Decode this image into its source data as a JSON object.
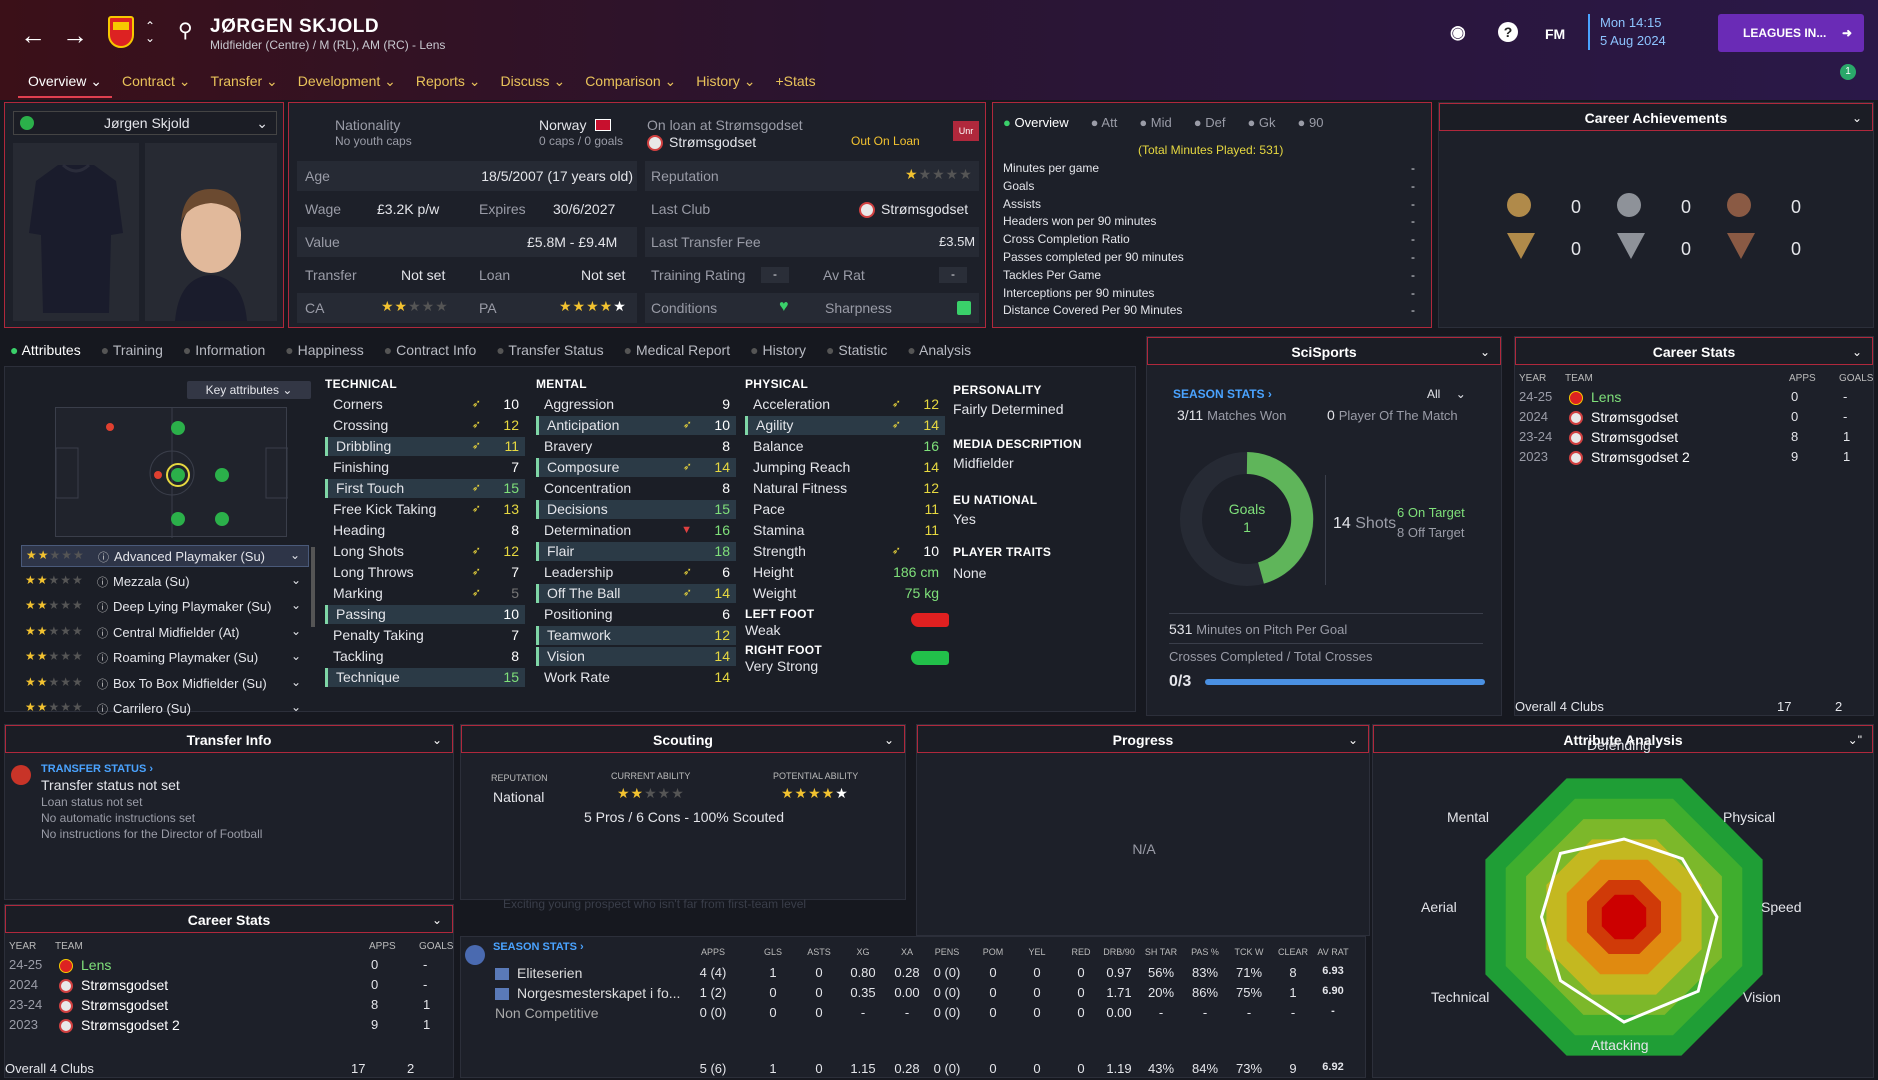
{
  "header": {
    "name": "JØRGEN SKJOLD",
    "subtitle": "Midfielder (Centre) / M (RL), AM (RC) - Lens",
    "date_time": "Mon 14:15",
    "date": "5 Aug 2024",
    "leagues_btn": "LEAGUES IN...",
    "fm": "FM",
    "notif": "1"
  },
  "tabs": [
    "Overview",
    "Contract",
    "Transfer",
    "Development",
    "Reports",
    "Discuss",
    "Comparison",
    "History",
    "+Stats"
  ],
  "profile": {
    "selector": "Jørgen Skjold"
  },
  "info": {
    "nationality_label": "Nationality",
    "nationality": "Norway",
    "youth_caps": "No youth caps",
    "caps": "0 caps / 0 goals",
    "loan_label": "On loan at Strømsgodset",
    "loan_club": "Strømsgodset",
    "loan_status": "Out On Loan",
    "unr": "Unr",
    "age_label": "Age",
    "age": "18/5/2007 (17 years old)",
    "rep_label": "Reputation",
    "wage_label": "Wage",
    "wage": "£3.2K p/w",
    "expires_label": "Expires",
    "expires": "30/6/2027",
    "last_club_label": "Last Club",
    "last_club": "Strømsgodset",
    "value_label": "Value",
    "value": "£5.8M - £9.4M",
    "ltf_label": "Last Transfer Fee",
    "ltf": "£3.5M",
    "transfer_label": "Transfer",
    "transfer": "Not set",
    "loan_label2": "Loan",
    "loan": "Not set",
    "tr_label": "Training Rating",
    "tr": "-",
    "avrat_label": "Av Rat",
    "avrat": "-",
    "ca_label": "CA",
    "pa_label": "PA",
    "cond_label": "Conditions",
    "sharp_label": "Sharpness"
  },
  "overview": {
    "tabs": [
      "Overview",
      "Att",
      "Mid",
      "Def",
      "Gk",
      "90"
    ],
    "total": "(Total Minutes Played: 531)",
    "rows": [
      "Minutes per game",
      "Goals",
      "Assists",
      "Headers won per 90 minutes",
      "Cross Completion Ratio",
      "Passes completed per 90 minutes",
      "Tackles Per Game",
      "Interceptions per 90 minutes",
      "Distance Covered Per 90 Minutes"
    ],
    "dash": "-"
  },
  "achievements": {
    "title": "Career Achievements",
    "counts": [
      "0",
      "0",
      "0",
      "0",
      "0",
      "0"
    ]
  },
  "subtabs": [
    "Attributes",
    "Training",
    "Information",
    "Happiness",
    "Contract Info",
    "Transfer Status",
    "Medical Report",
    "History",
    "Statistic",
    "Analysis"
  ],
  "key_attr": "Key attributes",
  "roles": [
    "Advanced Playmaker (Su)",
    "Mezzala (Su)",
    "Deep Lying Playmaker (Su)",
    "Central Midfielder (At)",
    "Roaming Playmaker (Su)",
    "Box To Box Midfielder (Su)",
    "Carrilero (Su)"
  ],
  "technical": {
    "title": "TECHNICAL",
    "items": [
      [
        "Corners",
        "10"
      ],
      [
        "Crossing",
        "12"
      ],
      [
        "Dribbling",
        "11"
      ],
      [
        "Finishing",
        "7"
      ],
      [
        "First Touch",
        "15"
      ],
      [
        "Free Kick Taking",
        "13"
      ],
      [
        "Heading",
        "8"
      ],
      [
        "Long Shots",
        "12"
      ],
      [
        "Long Throws",
        "7"
      ],
      [
        "Marking",
        "5"
      ],
      [
        "Passing",
        "10"
      ],
      [
        "Penalty Taking",
        "7"
      ],
      [
        "Tackling",
        "8"
      ],
      [
        "Technique",
        "15"
      ]
    ]
  },
  "mental": {
    "title": "MENTAL",
    "items": [
      [
        "Aggression",
        "9"
      ],
      [
        "Anticipation",
        "10"
      ],
      [
        "Bravery",
        "8"
      ],
      [
        "Composure",
        "14"
      ],
      [
        "Concentration",
        "8"
      ],
      [
        "Decisions",
        "15"
      ],
      [
        "Determination",
        "16"
      ],
      [
        "Flair",
        "18"
      ],
      [
        "Leadership",
        "6"
      ],
      [
        "Off The Ball",
        "14"
      ],
      [
        "Positioning",
        "6"
      ],
      [
        "Teamwork",
        "12"
      ],
      [
        "Vision",
        "14"
      ],
      [
        "Work Rate",
        "14"
      ]
    ]
  },
  "physical": {
    "title": "PHYSICAL",
    "items": [
      [
        "Acceleration",
        "12"
      ],
      [
        "Agility",
        "14"
      ],
      [
        "Balance",
        "16"
      ],
      [
        "Jumping Reach",
        "14"
      ],
      [
        "Natural Fitness",
        "12"
      ],
      [
        "Pace",
        "11"
      ],
      [
        "Stamina",
        "11"
      ],
      [
        "Strength",
        "10"
      ],
      [
        "Height",
        "186 cm"
      ],
      [
        "Weight",
        "75 kg"
      ]
    ],
    "left_foot_label": "LEFT FOOT",
    "left_foot": "Weak",
    "right_foot_label": "RIGHT FOOT",
    "right_foot": "Very Strong"
  },
  "personality": {
    "p_label": "PERSONALITY",
    "p": "Fairly Determined",
    "md_label": "MEDIA DESCRIPTION",
    "md": "Midfielder",
    "eu_label": "EU NATIONAL",
    "eu": "Yes",
    "traits_label": "PLAYER TRAITS",
    "traits": "None"
  },
  "scisports": {
    "title": "SciSports",
    "season": "SEASON STATS ›",
    "filter": "All",
    "matches": "3/11",
    "matches_label": "Matches Won",
    "potm": "0",
    "potm_label": "Player Of The Match",
    "goals_label": "Goals",
    "goals": "1",
    "shots": "14",
    "shots_label": "Shots",
    "on_target": "6",
    "on_target_label": "On Target",
    "off_target": "8",
    "off_target_label": "Off Target",
    "mins": "531",
    "mins_label": "Minutes on Pitch Per Goal",
    "crosses_label": "Crosses Completed / Total Crosses",
    "crosses": "0/3"
  },
  "career_right": {
    "title": "Career Stats",
    "headers": [
      "YEAR",
      "TEAM",
      "APPS",
      "GOALS"
    ],
    "rows": [
      [
        "24-25",
        "Lens",
        "0",
        "-"
      ],
      [
        "2024",
        "Strømsgodset",
        "0",
        "-"
      ],
      [
        "23-24",
        "Strømsgodset",
        "8",
        "1"
      ],
      [
        "2023",
        "Strømsgodset 2",
        "9",
        "1"
      ]
    ],
    "total": [
      "Overall 4 Clubs",
      "17",
      "2"
    ]
  },
  "transfer_info": {
    "title": "Transfer Info",
    "status_label": "TRANSFER STATUS ›",
    "lines": [
      "Transfer status not set",
      "Loan status not set",
      "No automatic instructions set",
      "No instructions for the Director of Football"
    ]
  },
  "scouting": {
    "title": "Scouting",
    "rep_label": "REPUTATION",
    "rep": "National",
    "ca_label": "CURRENT ABILITY",
    "pa_label": "POTENTIAL ABILITY",
    "summary": "5 Pros / 6 Cons - 100% Scouted",
    "quote": "Exciting young prospect who isn't far from first-team level"
  },
  "progress": {
    "title": "Progress",
    "na": "N/A"
  },
  "analysis": {
    "title": "Attribute Analysis",
    "axes": [
      "Defending",
      "Physical",
      "Speed",
      "Vision",
      "Attacking",
      "Technical",
      "Aerial",
      "Mental"
    ]
  },
  "career_left": {
    "title": "Career Stats",
    "headers": [
      "YEAR",
      "TEAM",
      "APPS",
      "GOALS"
    ],
    "rows": [
      [
        "24-25",
        "Lens",
        "0",
        "-"
      ],
      [
        "2024",
        "Strømsgodset",
        "0",
        "-"
      ],
      [
        "23-24",
        "Strømsgodset",
        "8",
        "1"
      ],
      [
        "2023",
        "Strømsgodset 2",
        "9",
        "1"
      ]
    ],
    "total": [
      "Overall 4 Clubs",
      "17",
      "2"
    ]
  },
  "season": {
    "label": "SEASON STATS ›",
    "headers": [
      "APPS",
      "GLS",
      "ASTS",
      "XG",
      "XA",
      "PENS",
      "POM",
      "YEL",
      "RED",
      "DRB/90",
      "SH TAR",
      "PAS %",
      "TCK W",
      "CLEAR",
      "AV RAT"
    ],
    "rows": [
      [
        "Eliteserien",
        "4 (4)",
        "1",
        "0",
        "0.80",
        "0.28",
        "0 (0)",
        "0",
        "0",
        "0",
        "0.97",
        "56%",
        "83%",
        "71%",
        "8",
        "6.93"
      ],
      [
        "Norgesmesterskapet i fo...",
        "1 (2)",
        "0",
        "0",
        "0.35",
        "0.00",
        "0 (0)",
        "0",
        "0",
        "0",
        "1.71",
        "20%",
        "86%",
        "75%",
        "1",
        "6.90"
      ],
      [
        "Non Competitive",
        "0 (0)",
        "0",
        "0",
        "-",
        "-",
        "0 (0)",
        "0",
        "0",
        "0",
        "0.00",
        "-",
        "-",
        "-",
        "-",
        "-"
      ],
      [
        "",
        "5 (6)",
        "1",
        "0",
        "1.15",
        "0.28",
        "0 (0)",
        "0",
        "0",
        "0",
        "1.19",
        "43%",
        "84%",
        "73%",
        "9",
        "6.92"
      ]
    ]
  }
}
